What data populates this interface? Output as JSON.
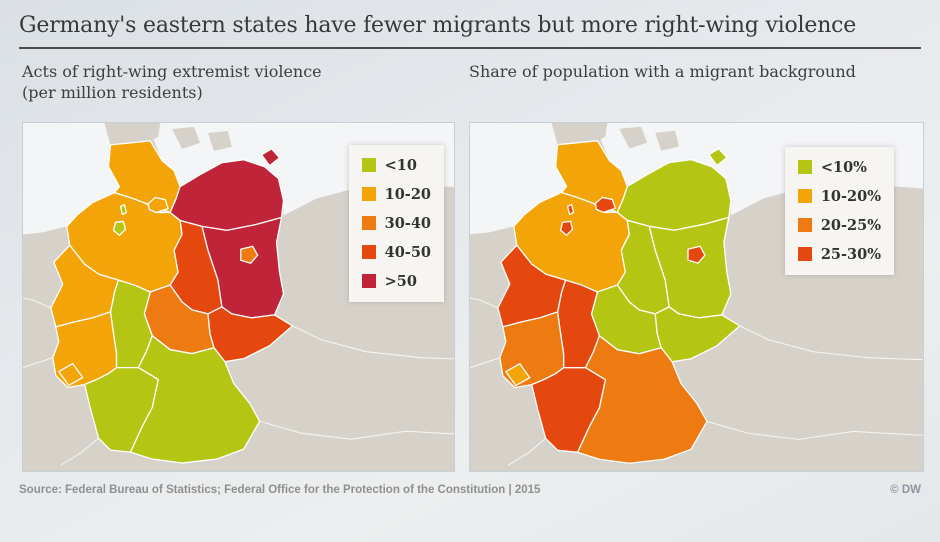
{
  "title": "Germany's eastern states have fewer migrants but more right-wing violence",
  "footer": {
    "source": "Source: Federal Bureau of Statistics; Federal Office for the Protection of the Constitution | 2015",
    "credit": "© DW"
  },
  "palette": {
    "green": "#b5c513",
    "orange": "#f2a408",
    "dark_orange": "#ee7a12",
    "red": "#e5480f",
    "dark_red": "#bf2438",
    "land": "#d6d2ca",
    "sea": "#f4f5f6",
    "state_border": "#ffffff",
    "title_rule": "#4c4c4c",
    "legend_bg": "#f7f5f1"
  },
  "state_names": {
    "SH": "Schleswig-Holstein",
    "HH": "Hamburg",
    "MV": "Mecklenburg-Vorpommern",
    "NI": "Lower Saxony",
    "HB": "Bremen",
    "BB": "Brandenburg",
    "BE": "Berlin",
    "ST": "Saxony-Anhalt",
    "SN": "Saxony",
    "TH": "Thuringia",
    "HE": "Hesse",
    "NW": "North Rhine-Westphalia",
    "RP": "Rhineland-Palatinate",
    "SL": "Saarland",
    "BW": "Baden-Württemberg",
    "BY": "Bavaria"
  },
  "maps": [
    {
      "id": "violence",
      "subtitle_line1": "Acts of right-wing extremist violence",
      "subtitle_line2": "(per million residents)",
      "legend": [
        {
          "label": "<10",
          "color": "green"
        },
        {
          "label": "10-20",
          "color": "orange"
        },
        {
          "label": "30-40",
          "color": "dark_orange"
        },
        {
          "label": "40-50",
          "color": "red"
        },
        {
          "label": ">50",
          "color": "dark_red"
        }
      ],
      "states": {
        "SH": "orange",
        "HH": "orange",
        "MV": "dark_red",
        "NI": "orange",
        "HB": "green",
        "BB": "dark_red",
        "BE": "dark_orange",
        "ST": "red",
        "SN": "red",
        "TH": "dark_orange",
        "HE": "green",
        "NW": "orange",
        "RP": "orange",
        "SL": "orange",
        "BW": "green",
        "BY": "green"
      }
    },
    {
      "id": "migrants",
      "subtitle_line1": "Share of population with a migrant background",
      "subtitle_line2": "",
      "legend": [
        {
          "label": "<10%",
          "color": "green"
        },
        {
          "label": "10-20%",
          "color": "orange"
        },
        {
          "label": "20-25%",
          "color": "dark_orange"
        },
        {
          "label": "25-30%",
          "color": "red"
        }
      ],
      "states": {
        "SH": "orange",
        "HH": "red",
        "MV": "green",
        "NI": "orange",
        "HB": "red",
        "BB": "green",
        "BE": "red",
        "ST": "green",
        "SN": "green",
        "TH": "green",
        "HE": "red",
        "NW": "red",
        "RP": "dark_orange",
        "SL": "orange",
        "BW": "red",
        "BY": "dark_orange"
      }
    }
  ],
  "chart_data": [
    {
      "type": "heatmap",
      "subtype": "choropleth-map",
      "title": "Acts of right-wing extremist violence (per million residents)",
      "bins": [
        "<10",
        "10-20",
        "30-40",
        "40-50",
        ">50"
      ],
      "legend_position": "top-right",
      "values": {
        "Schleswig-Holstein": "10-20",
        "Hamburg": "10-20",
        "Mecklenburg-Vorpommern": ">50",
        "Lower Saxony": "10-20",
        "Bremen": "<10",
        "Brandenburg": ">50",
        "Berlin": "30-40",
        "Saxony-Anhalt": "40-50",
        "Saxony": "40-50",
        "Thuringia": "30-40",
        "Hesse": "<10",
        "North Rhine-Westphalia": "10-20",
        "Rhineland-Palatinate": "10-20",
        "Saarland": "10-20",
        "Baden-Württemberg": "<10",
        "Bavaria": "<10"
      }
    },
    {
      "type": "heatmap",
      "subtype": "choropleth-map",
      "title": "Share of population with a migrant background",
      "bins": [
        "<10%",
        "10-20%",
        "20-25%",
        "25-30%"
      ],
      "legend_position": "top-right",
      "values": {
        "Schleswig-Holstein": "10-20%",
        "Hamburg": "25-30%",
        "Mecklenburg-Vorpommern": "<10%",
        "Lower Saxony": "10-20%",
        "Bremen": "25-30%",
        "Brandenburg": "<10%",
        "Berlin": "25-30%",
        "Saxony-Anhalt": "<10%",
        "Saxony": "<10%",
        "Thuringia": "<10%",
        "Hesse": "25-30%",
        "North Rhine-Westphalia": "25-30%",
        "Rhineland-Palatinate": "20-25%",
        "Saarland": "10-20%",
        "Baden-Württemberg": "25-30%",
        "Bavaria": "20-25%"
      }
    }
  ]
}
